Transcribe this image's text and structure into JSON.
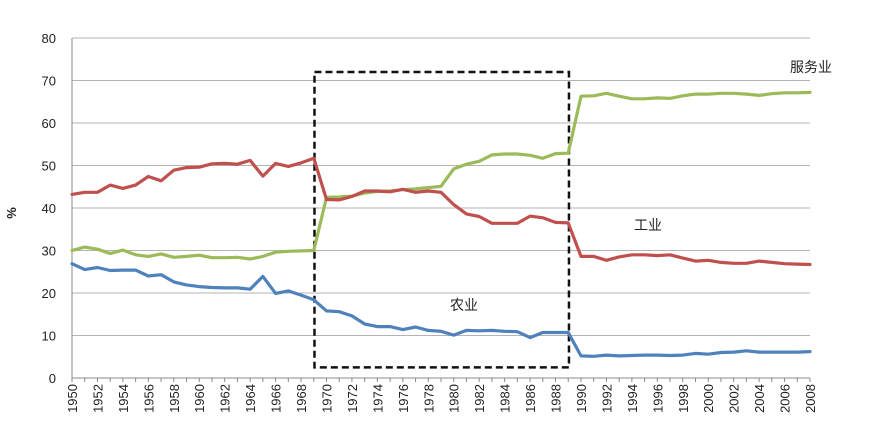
{
  "chart_data": {
    "type": "line",
    "title": "",
    "xlabel": "",
    "ylabel": "%",
    "ylim": [
      0,
      80
    ],
    "yticks": [
      0,
      10,
      20,
      30,
      40,
      50,
      60,
      70,
      80
    ],
    "xlim": [
      1950,
      2008
    ],
    "xticks": [
      1950,
      1952,
      1954,
      1956,
      1958,
      1960,
      1962,
      1964,
      1966,
      1968,
      1970,
      1972,
      1974,
      1976,
      1978,
      1980,
      1982,
      1984,
      1986,
      1988,
      1990,
      1992,
      1994,
      1996,
      1998,
      2000,
      2002,
      2004,
      2006,
      2008
    ],
    "grid": "horizontal",
    "highlight_box": {
      "x_range": [
        1970,
        1990
      ],
      "y_range": [
        2.5,
        72
      ],
      "style": "dashed"
    },
    "x": [
      1950,
      1951,
      1952,
      1953,
      1954,
      1955,
      1956,
      1957,
      1958,
      1959,
      1960,
      1961,
      1962,
      1963,
      1964,
      1965,
      1966,
      1967,
      1968,
      1969,
      1970,
      1971,
      1972,
      1973,
      1974,
      1975,
      1976,
      1977,
      1978,
      1979,
      1980,
      1981,
      1982,
      1983,
      1984,
      1985,
      1986,
      1987,
      1988,
      1989,
      1990,
      1991,
      1992,
      1993,
      1994,
      1995,
      1996,
      1997,
      1998,
      1999,
      2000,
      2001,
      2002,
      2003,
      2004,
      2005,
      2006,
      2007,
      2008
    ],
    "series": [
      {
        "name": "服务业",
        "label": "服务业",
        "color": "#9BBB59",
        "values": [
          30.0,
          30.8,
          30.3,
          29.3,
          30.1,
          29.0,
          28.6,
          29.2,
          28.4,
          28.6,
          28.9,
          28.3,
          28.3,
          28.4,
          28.0,
          28.6,
          29.6,
          29.8,
          29.9,
          30.0,
          42.5,
          42.6,
          42.8,
          43.5,
          43.9,
          44.0,
          44.3,
          44.5,
          44.8,
          45.1,
          49.2,
          50.3,
          51.0,
          52.5,
          52.7,
          52.7,
          52.4,
          51.7,
          52.8,
          52.9,
          66.3,
          66.4,
          67.0,
          66.3,
          65.7,
          65.7,
          65.9,
          65.8,
          66.4,
          66.8,
          66.8,
          67.0,
          67.0,
          66.8,
          66.5,
          66.9,
          67.1,
          67.1,
          67.2
        ]
      },
      {
        "name": "工业",
        "label": "工业",
        "color": "#C0504D",
        "values": [
          43.2,
          43.7,
          43.7,
          45.4,
          44.6,
          45.4,
          47.4,
          46.4,
          48.9,
          49.5,
          49.6,
          50.4,
          50.5,
          50.3,
          51.2,
          47.5,
          50.5,
          49.8,
          50.6,
          51.7,
          42.0,
          41.9,
          42.7,
          44.0,
          44.0,
          43.8,
          44.4,
          43.7,
          44.0,
          43.7,
          40.8,
          38.6,
          38.0,
          36.4,
          36.4,
          36.4,
          38.1,
          37.7,
          36.6,
          36.5,
          28.6,
          28.6,
          27.7,
          28.5,
          29.0,
          29.0,
          28.8,
          29.0,
          28.2,
          27.5,
          27.7,
          27.2,
          27.0,
          27.0,
          27.5,
          27.2,
          26.9,
          26.8,
          26.7
        ]
      },
      {
        "name": "农业",
        "label": "农业",
        "color": "#4F81BD",
        "values": [
          26.9,
          25.5,
          26.0,
          25.3,
          25.4,
          25.4,
          24.0,
          24.3,
          22.6,
          21.9,
          21.5,
          21.3,
          21.2,
          21.2,
          20.9,
          23.9,
          19.9,
          20.5,
          19.5,
          18.4,
          15.8,
          15.6,
          14.6,
          12.7,
          12.1,
          12.1,
          11.4,
          12.0,
          11.2,
          11.0,
          10.1,
          11.2,
          11.1,
          11.2,
          11.0,
          10.9,
          9.5,
          10.7,
          10.7,
          10.7,
          5.2,
          5.1,
          5.4,
          5.2,
          5.3,
          5.4,
          5.4,
          5.3,
          5.4,
          5.8,
          5.6,
          6.0,
          6.1,
          6.4,
          6.1,
          6.1,
          6.1,
          6.1,
          6.2
        ]
      }
    ]
  }
}
